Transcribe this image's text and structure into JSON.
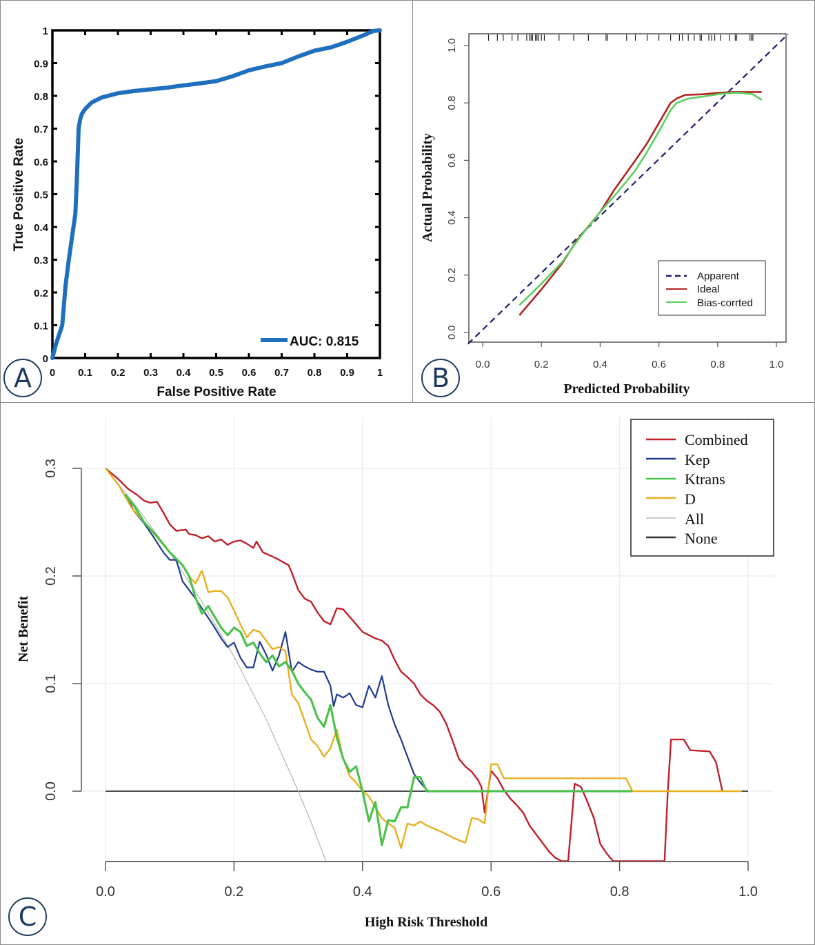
{
  "figure": {
    "panels": [
      {
        "id": "A",
        "label": "A"
      },
      {
        "id": "B",
        "label": "B"
      },
      {
        "id": "C",
        "label": "C"
      }
    ]
  },
  "chart_data": [
    {
      "panel": "A",
      "type": "line",
      "title": "",
      "xlabel": "False Positive Rate",
      "ylabel": "True Positive Rate",
      "xlim": [
        0,
        1
      ],
      "ylim": [
        0,
        1
      ],
      "xticks": [
        "0",
        "0.1",
        "0.2",
        "0.3",
        "0.4",
        "0.5",
        "0.6",
        "0.7",
        "0.8",
        "0.9",
        "1"
      ],
      "yticks": [
        "0",
        "0.1",
        "0.2",
        "0.3",
        "0.4",
        "0.5",
        "0.6",
        "0.7",
        "0.8",
        "0.9",
        "1"
      ],
      "grid": false,
      "legend_position": "bottom-right",
      "series": [
        {
          "name": "AUC: 0.815",
          "color": "#1f6fbf",
          "x": [
            0,
            0.01,
            0.02,
            0.03,
            0.04,
            0.05,
            0.06,
            0.07,
            0.075,
            0.08,
            0.085,
            0.09,
            0.1,
            0.12,
            0.15,
            0.2,
            0.25,
            0.3,
            0.35,
            0.4,
            0.45,
            0.5,
            0.55,
            0.6,
            0.65,
            0.7,
            0.75,
            0.8,
            0.85,
            0.9,
            0.95,
            0.98,
            1.0
          ],
          "y": [
            0,
            0.04,
            0.07,
            0.1,
            0.22,
            0.3,
            0.37,
            0.44,
            0.55,
            0.7,
            0.73,
            0.745,
            0.76,
            0.78,
            0.795,
            0.808,
            0.815,
            0.82,
            0.825,
            0.832,
            0.838,
            0.845,
            0.86,
            0.878,
            0.89,
            0.9,
            0.92,
            0.938,
            0.948,
            0.965,
            0.985,
            0.998,
            1.0
          ]
        }
      ]
    },
    {
      "panel": "B",
      "type": "line",
      "title": "",
      "xlabel": "Predicted Probability",
      "ylabel": "Actual Probability",
      "xlim": [
        -0.05,
        1.04
      ],
      "ylim": [
        -0.04,
        1.04
      ],
      "xticks": [
        "0.0",
        "0.2",
        "0.4",
        "0.6",
        "0.8",
        "1.0"
      ],
      "yticks": [
        "0.0",
        "0.2",
        "0.4",
        "0.6",
        "0.8",
        "1.0"
      ],
      "grid": false,
      "legend_position": "bottom-right",
      "rug_x": [
        0.02,
        0.05,
        0.07,
        0.1,
        0.12,
        0.15,
        0.16,
        0.165,
        0.17,
        0.18,
        0.185,
        0.19,
        0.2,
        0.21,
        0.26,
        0.31,
        0.36,
        0.42,
        0.425,
        0.49,
        0.52,
        0.56,
        0.6,
        0.64,
        0.67,
        0.68,
        0.7,
        0.72,
        0.74,
        0.745,
        0.77,
        0.78,
        0.79,
        0.81,
        0.84,
        0.86,
        0.865,
        0.91,
        0.915,
        0.92
      ],
      "series": [
        {
          "name": "Apparent",
          "color": "#1a1f6e",
          "dash": true,
          "x": [
            -0.05,
            1.04
          ],
          "y": [
            -0.04,
            1.04
          ]
        },
        {
          "name": "Ideal",
          "color": "#b22222",
          "x": [
            0.125,
            0.2,
            0.27,
            0.32,
            0.4,
            0.45,
            0.52,
            0.56,
            0.6,
            0.64,
            0.66,
            0.69,
            0.75,
            0.8,
            0.85,
            0.9,
            0.95
          ],
          "y": [
            0.06,
            0.15,
            0.24,
            0.32,
            0.42,
            0.5,
            0.6,
            0.66,
            0.73,
            0.8,
            0.815,
            0.828,
            0.83,
            0.835,
            0.838,
            0.838,
            0.838
          ]
        },
        {
          "name": "Bias-corrted",
          "color": "#5ccf5c",
          "x": [
            0.125,
            0.2,
            0.27,
            0.33,
            0.4,
            0.46,
            0.52,
            0.56,
            0.6,
            0.64,
            0.66,
            0.7,
            0.75,
            0.8,
            0.85,
            0.88,
            0.92,
            0.95
          ],
          "y": [
            0.095,
            0.17,
            0.245,
            0.33,
            0.42,
            0.49,
            0.565,
            0.63,
            0.7,
            0.775,
            0.8,
            0.815,
            0.822,
            0.83,
            0.835,
            0.835,
            0.83,
            0.81
          ]
        }
      ]
    },
    {
      "panel": "C",
      "type": "line",
      "title": "",
      "xlabel": "High Risk Threshold",
      "ylabel": "Net Benefit",
      "xlim": [
        0,
        1.0
      ],
      "ylim": [
        -0.065,
        0.3
      ],
      "xticks": [
        "0.0",
        "0.2",
        "0.4",
        "0.6",
        "0.8",
        "1.0"
      ],
      "yticks": [
        "0.0",
        "0.1",
        "0.2",
        "0.3"
      ],
      "grid": true,
      "legend_position": "top-right",
      "series": [
        {
          "name": "Combined",
          "color": "#c0202a",
          "x": [
            0.0,
            0.02,
            0.035,
            0.05,
            0.06,
            0.07,
            0.08,
            0.09,
            0.1,
            0.11,
            0.125,
            0.13,
            0.14,
            0.15,
            0.16,
            0.17,
            0.18,
            0.19,
            0.2,
            0.21,
            0.22,
            0.23,
            0.235,
            0.245,
            0.26,
            0.27,
            0.285,
            0.29,
            0.3,
            0.31,
            0.32,
            0.33,
            0.34,
            0.35,
            0.36,
            0.37,
            0.38,
            0.39,
            0.4,
            0.41,
            0.42,
            0.43,
            0.44,
            0.45,
            0.46,
            0.47,
            0.48,
            0.49,
            0.5,
            0.51,
            0.52,
            0.53,
            0.54,
            0.55,
            0.56,
            0.57,
            0.58,
            0.585,
            0.59,
            0.6,
            0.61,
            0.62,
            0.63,
            0.64,
            0.65,
            0.66,
            0.67,
            0.68,
            0.69,
            0.7,
            0.71,
            0.72,
            0.725,
            0.73,
            0.74,
            0.75,
            0.76,
            0.77,
            0.78,
            0.79,
            0.8,
            0.87,
            0.875,
            0.88,
            0.9,
            0.91,
            0.94,
            0.95,
            0.96
          ],
          "y": [
            0.3,
            0.29,
            0.281,
            0.275,
            0.27,
            0.268,
            0.269,
            0.259,
            0.248,
            0.242,
            0.243,
            0.239,
            0.238,
            0.235,
            0.237,
            0.232,
            0.234,
            0.229,
            0.232,
            0.233,
            0.23,
            0.226,
            0.232,
            0.222,
            0.218,
            0.215,
            0.21,
            0.203,
            0.187,
            0.179,
            0.176,
            0.166,
            0.158,
            0.155,
            0.17,
            0.169,
            0.162,
            0.155,
            0.148,
            0.145,
            0.142,
            0.14,
            0.135,
            0.122,
            0.111,
            0.106,
            0.1,
            0.09,
            0.084,
            0.08,
            0.074,
            0.063,
            0.047,
            0.03,
            0.023,
            0.018,
            0.01,
            0.004,
            -0.02,
            0.019,
            0.012,
            0.001,
            -0.007,
            -0.013,
            -0.02,
            -0.032,
            -0.04,
            -0.048,
            -0.056,
            -0.062,
            -0.065,
            -0.065,
            -0.03,
            0.007,
            0.004,
            -0.01,
            -0.025,
            -0.049,
            -0.058,
            -0.065,
            -0.065,
            -0.065,
            0.0,
            0.048,
            0.048,
            0.038,
            0.037,
            0.027,
            0.0
          ]
        },
        {
          "name": "Kep",
          "color": "#1f3a8f",
          "x": [
            0.03,
            0.045,
            0.06,
            0.075,
            0.09,
            0.1,
            0.11,
            0.115,
            0.12,
            0.13,
            0.14,
            0.15,
            0.16,
            0.17,
            0.18,
            0.19,
            0.2,
            0.21,
            0.22,
            0.23,
            0.24,
            0.25,
            0.26,
            0.27,
            0.28,
            0.29,
            0.3,
            0.31,
            0.32,
            0.33,
            0.34,
            0.35,
            0.355,
            0.36,
            0.37,
            0.38,
            0.39,
            0.4,
            0.41,
            0.42,
            0.43,
            0.44,
            0.45,
            0.46,
            0.47,
            0.48,
            0.49,
            0.5,
            0.505
          ],
          "y": [
            0.276,
            0.26,
            0.249,
            0.236,
            0.222,
            0.215,
            0.215,
            0.205,
            0.195,
            0.187,
            0.179,
            0.17,
            0.161,
            0.152,
            0.142,
            0.134,
            0.138,
            0.124,
            0.115,
            0.115,
            0.139,
            0.127,
            0.112,
            0.126,
            0.148,
            0.111,
            0.12,
            0.116,
            0.113,
            0.111,
            0.111,
            0.098,
            0.079,
            0.09,
            0.087,
            0.091,
            0.08,
            0.078,
            0.098,
            0.087,
            0.107,
            0.08,
            0.062,
            0.048,
            0.032,
            0.016,
            0.008,
            0.001,
            0.0
          ]
        },
        {
          "name": "Ktrans",
          "color": "#4cc24c",
          "x": [
            0.03,
            0.045,
            0.06,
            0.08,
            0.1,
            0.12,
            0.13,
            0.14,
            0.15,
            0.16,
            0.17,
            0.18,
            0.19,
            0.2,
            0.21,
            0.22,
            0.23,
            0.24,
            0.25,
            0.26,
            0.27,
            0.28,
            0.29,
            0.3,
            0.31,
            0.32,
            0.33,
            0.34,
            0.35,
            0.36,
            0.37,
            0.38,
            0.39,
            0.4,
            0.41,
            0.42,
            0.43,
            0.44,
            0.45,
            0.46,
            0.47,
            0.48,
            0.49,
            0.5,
            0.51,
            0.82
          ],
          "y": [
            0.276,
            0.265,
            0.25,
            0.237,
            0.222,
            0.21,
            0.2,
            0.18,
            0.165,
            0.172,
            0.162,
            0.152,
            0.145,
            0.152,
            0.148,
            0.135,
            0.138,
            0.128,
            0.12,
            0.126,
            0.116,
            0.12,
            0.112,
            0.1,
            0.092,
            0.085,
            0.068,
            0.06,
            0.08,
            0.05,
            0.03,
            0.018,
            0.023,
            0.0,
            -0.028,
            -0.01,
            -0.05,
            -0.027,
            -0.028,
            -0.015,
            -0.015,
            0.013,
            0.013,
            0.0,
            0.0,
            0.0
          ]
        },
        {
          "name": "D",
          "color": "#e6b020",
          "x": [
            0.0,
            0.02,
            0.04,
            0.06,
            0.08,
            0.1,
            0.12,
            0.13,
            0.14,
            0.15,
            0.16,
            0.17,
            0.18,
            0.19,
            0.2,
            0.21,
            0.22,
            0.23,
            0.24,
            0.25,
            0.26,
            0.27,
            0.28,
            0.29,
            0.3,
            0.31,
            0.32,
            0.33,
            0.34,
            0.35,
            0.36,
            0.37,
            0.38,
            0.39,
            0.4,
            0.41,
            0.42,
            0.43,
            0.44,
            0.45,
            0.46,
            0.47,
            0.48,
            0.49,
            0.5,
            0.52,
            0.54,
            0.56,
            0.57,
            0.58,
            0.59,
            0.6,
            0.61,
            0.62,
            0.63,
            0.64,
            0.81,
            0.82,
            0.99
          ],
          "y": [
            0.3,
            0.285,
            0.264,
            0.25,
            0.236,
            0.222,
            0.21,
            0.2,
            0.193,
            0.205,
            0.185,
            0.186,
            0.186,
            0.18,
            0.168,
            0.155,
            0.143,
            0.15,
            0.148,
            0.14,
            0.132,
            0.134,
            0.13,
            0.09,
            0.082,
            0.065,
            0.048,
            0.042,
            0.032,
            0.04,
            0.057,
            0.03,
            0.014,
            0.008,
            0.0,
            -0.005,
            -0.015,
            -0.025,
            -0.03,
            -0.034,
            -0.053,
            -0.03,
            -0.032,
            -0.028,
            -0.032,
            -0.037,
            -0.043,
            -0.048,
            -0.025,
            -0.026,
            -0.03,
            0.025,
            0.025,
            0.012,
            0.012,
            0.012,
            0.012,
            0.0,
            0.0
          ]
        },
        {
          "name": "All",
          "color": "#b8b8b8",
          "x": [
            0.0,
            0.05,
            0.1,
            0.15,
            0.2,
            0.25,
            0.3,
            0.32,
            0.343
          ],
          "y": [
            0.3,
            0.263,
            0.222,
            0.176,
            0.125,
            0.067,
            0.0,
            -0.029,
            -0.065
          ]
        },
        {
          "name": "None",
          "color": "#333333",
          "x": [
            0.0,
            1.0
          ],
          "y": [
            0.0,
            0.0
          ]
        }
      ]
    }
  ]
}
